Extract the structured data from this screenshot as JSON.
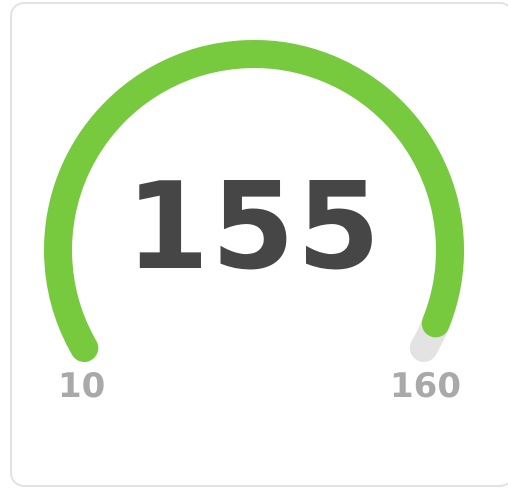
{
  "gauge": {
    "value": "155",
    "min": "10",
    "max": "160",
    "value_number": 155,
    "min_number": 10,
    "max_number": 160,
    "fill_color": "#77c93e",
    "track_color": "#e3e3e3",
    "value_color": "#464646",
    "label_color": "#a9a9a9"
  }
}
